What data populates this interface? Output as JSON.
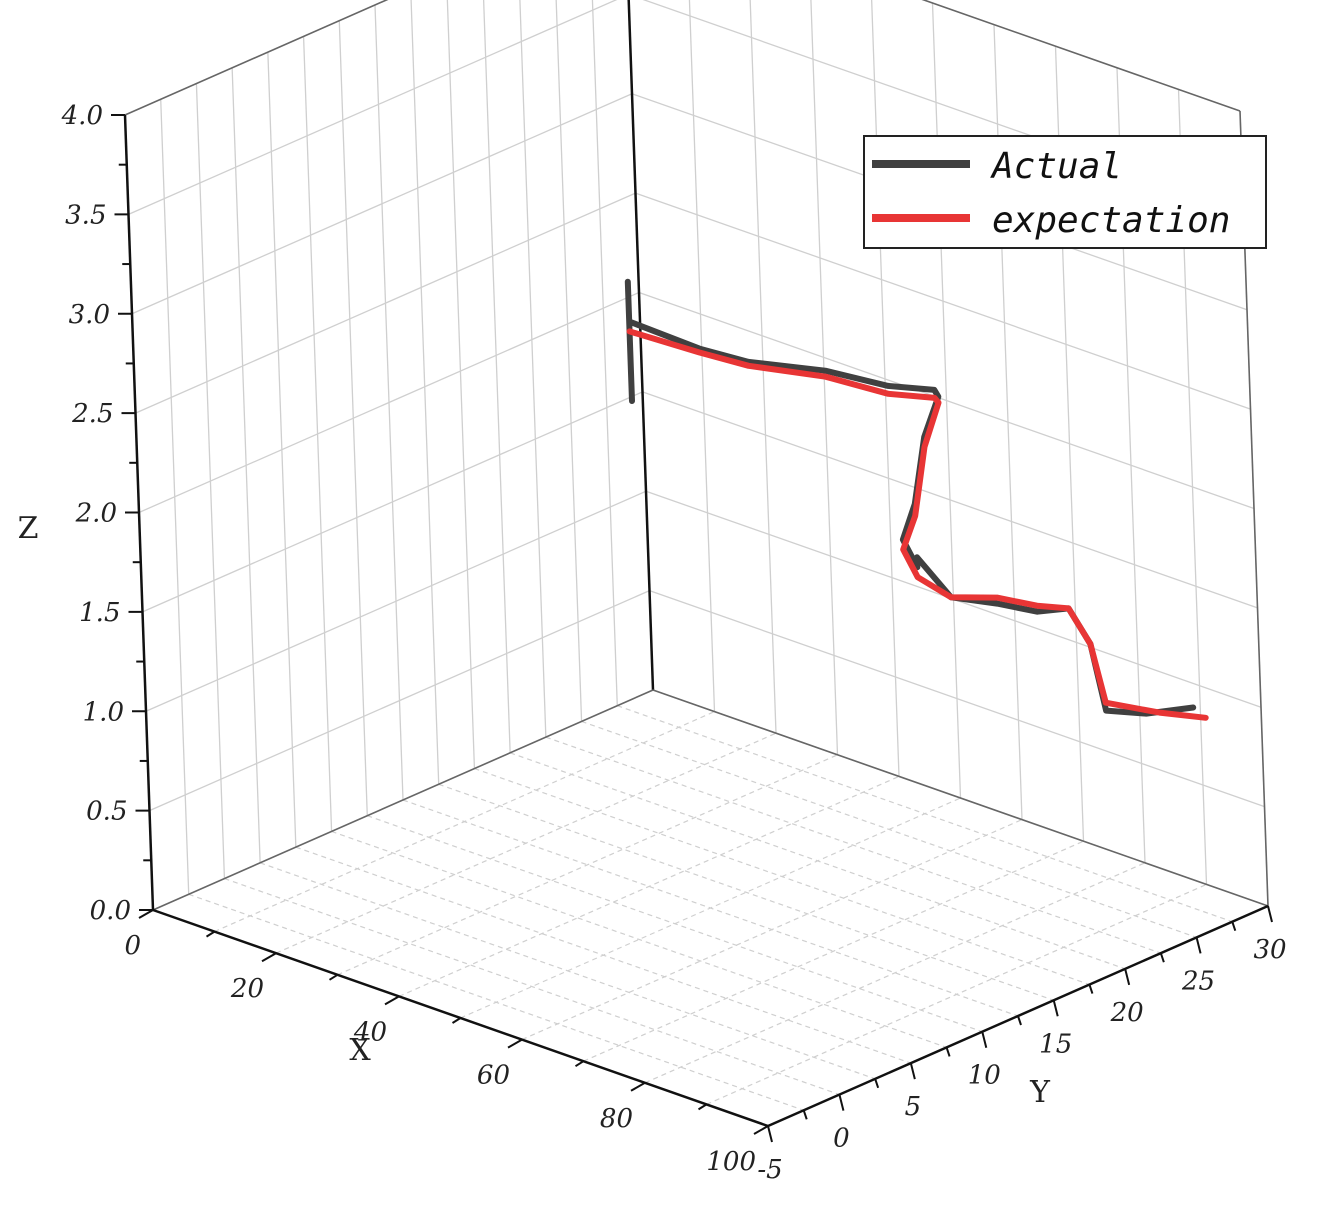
{
  "chart_data": {
    "type": "line",
    "title": "",
    "xlabel": "X",
    "ylabel": "Y",
    "zlabel": "Z",
    "xlim": [
      0,
      100
    ],
    "ylim": [
      -5,
      30
    ],
    "zlim": [
      0,
      4.0
    ],
    "x_ticks": [
      "0",
      "20",
      "40",
      "60",
      "80",
      "100"
    ],
    "y_ticks": [
      "-5",
      "0",
      "5",
      "10",
      "15",
      "20",
      "25",
      "30"
    ],
    "z_ticks": [
      "0.0",
      "0.5",
      "1.0",
      "1.5",
      "2.0",
      "2.5",
      "3.0",
      "3.5",
      "4.0"
    ],
    "grid": true,
    "legend_position": "top-right",
    "series": [
      {
        "name": "Actual",
        "color": "#404040",
        "points": [
          [
            3,
            28,
            2.15
          ],
          [
            3,
            28,
            1.55
          ],
          [
            3,
            28,
            1.95
          ],
          [
            12,
            29,
            1.88
          ],
          [
            20,
            29,
            1.9
          ],
          [
            35,
            28,
            2.05
          ],
          [
            50,
            26,
            2.2
          ],
          [
            60,
            25,
            2.32
          ],
          [
            63,
            24,
            2.35
          ],
          [
            70,
            20,
            2.35
          ],
          [
            80,
            15,
            2.28
          ],
          [
            85,
            12,
            2.25
          ],
          [
            92,
            10,
            2.25
          ],
          [
            92,
            10,
            2.3
          ],
          [
            95,
            11,
            2.1
          ],
          [
            93,
            15,
            1.92
          ],
          [
            90,
            19,
            1.72
          ],
          [
            88,
            22,
            1.62
          ],
          [
            89,
            23,
            1.42
          ],
          [
            90,
            23.5,
            1.08
          ],
          [
            93,
            25,
            1.05
          ],
          [
            96,
            27,
            1.05
          ]
        ]
      },
      {
        "name": "expectation",
        "color": "#e83535",
        "points": [
          [
            3,
            28,
            1.9
          ],
          [
            12,
            29,
            1.86
          ],
          [
            20,
            29,
            1.88
          ],
          [
            35,
            28,
            2.02
          ],
          [
            50,
            26,
            2.16
          ],
          [
            60,
            25,
            2.28
          ],
          [
            63,
            24,
            2.32
          ],
          [
            70,
            20,
            2.3
          ],
          [
            80,
            15,
            2.22
          ],
          [
            85,
            12,
            2.2
          ],
          [
            92,
            10,
            2.2
          ],
          [
            95,
            11,
            2.1
          ],
          [
            93,
            15,
            1.95
          ],
          [
            90,
            19,
            1.75
          ],
          [
            88,
            22,
            1.62
          ],
          [
            89,
            23,
            1.42
          ],
          [
            90,
            23.5,
            1.12
          ],
          [
            94,
            25.5,
            1.05
          ],
          [
            98,
            27,
            1.02
          ]
        ]
      }
    ],
    "colors": {
      "actual": "#404040",
      "expectation": "#e83535"
    },
    "legend": {
      "actual": "Actual",
      "expectation": "expectation"
    }
  }
}
